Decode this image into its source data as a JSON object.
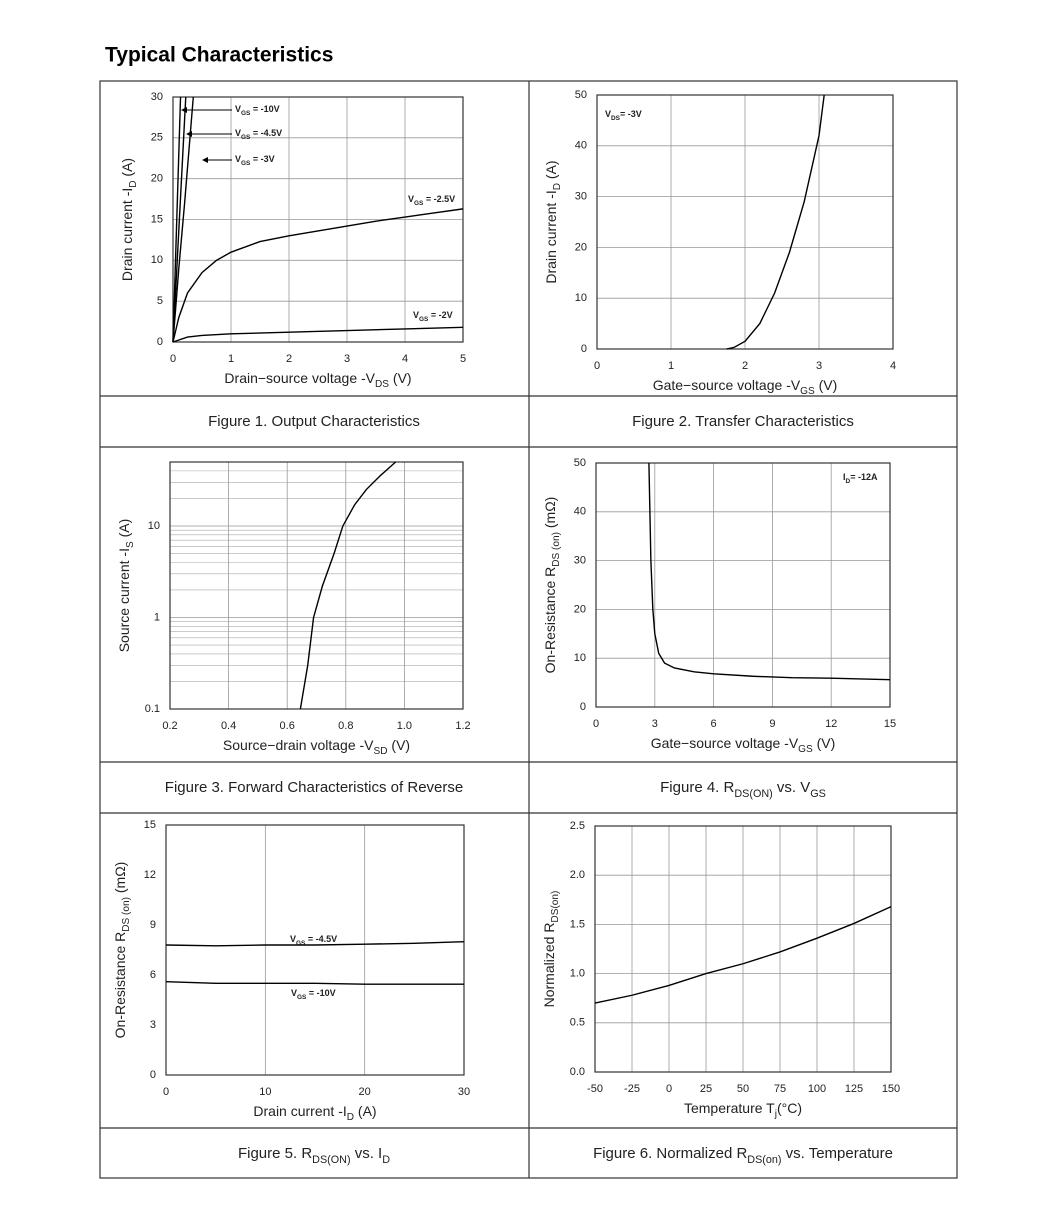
{
  "title": "Typical Characteristics",
  "chart_data": [
    {
      "type": "line",
      "title": [
        "Figure 1. Output Characteristics"
      ],
      "color": "#000000",
      "x_label": [
        "Drain−source voltage -V",
        "DS",
        " (V)"
      ],
      "y_label": [
        "Drain current -I",
        "D",
        " (A)"
      ],
      "xlim": [
        0,
        5
      ],
      "xticks": [
        0,
        1,
        2,
        3,
        4,
        5
      ],
      "ylim": [
        0,
        30
      ],
      "yticks": [
        0,
        5,
        10,
        15,
        20,
        25,
        30
      ],
      "grid": "both",
      "series": [
        {
          "name": [
            "V",
            "GS",
            " = -10V"
          ],
          "x": [
            0,
            0.13
          ],
          "values": [
            0,
            30
          ]
        },
        {
          "name": [
            "V",
            "GS",
            " = -4.5V"
          ],
          "x": [
            0,
            0.22
          ],
          "values": [
            0,
            30
          ]
        },
        {
          "name": [
            "V",
            "GS",
            " = -3V"
          ],
          "x": [
            0,
            0.1,
            0.2,
            0.35
          ],
          "values": [
            0,
            9,
            17,
            30
          ]
        },
        {
          "name": [
            "V",
            "GS",
            " = -2.5V"
          ],
          "x": [
            0,
            0.1,
            0.25,
            0.5,
            0.75,
            1,
            1.5,
            2,
            2.5,
            3,
            3.5,
            4,
            4.5,
            5
          ],
          "values": [
            0,
            3,
            6,
            8.5,
            10,
            11,
            12.3,
            13,
            13.6,
            14.2,
            14.8,
            15.3,
            15.8,
            16.3
          ]
        },
        {
          "name": [
            "V",
            "GS",
            " = -2V"
          ],
          "x": [
            0,
            0.25,
            0.5,
            1,
            2,
            3,
            4,
            5
          ],
          "values": [
            0,
            0.6,
            0.8,
            1,
            1.2,
            1.4,
            1.6,
            1.8
          ]
        }
      ]
    },
    {
      "type": "line",
      "title": [
        "Figure 2. Transfer Characteristics"
      ],
      "color": "#000000",
      "x_label": [
        "Gate−source voltage -V",
        "GS",
        " (V)"
      ],
      "y_label": [
        "Drain current -I",
        "D",
        " (A)"
      ],
      "xlim": [
        0,
        4
      ],
      "xticks": [
        0,
        1,
        2,
        3,
        4
      ],
      "ylim": [
        0,
        50
      ],
      "yticks": [
        0,
        10,
        20,
        30,
        40,
        50
      ],
      "grid": "both",
      "series": [
        {
          "name": [
            "V",
            "DS",
            "= -3V"
          ],
          "x": [
            1.75,
            1.85,
            2,
            2.2,
            2.4,
            2.6,
            2.8,
            3,
            3.07
          ],
          "values": [
            0,
            0.3,
            1.5,
            5,
            11,
            19,
            29,
            42,
            50
          ]
        }
      ]
    },
    {
      "type": "line",
      "title": [
        "Figure 3. Forward Characteristics of Reverse"
      ],
      "color": "#000000",
      "x_label": [
        "Source−drain voltage -V",
        "SD",
        " (V)"
      ],
      "y_label": [
        "Source current -I",
        "S",
        " (A)"
      ],
      "xlim": [
        0.2,
        1.2
      ],
      "xticks": [
        0.2,
        0.4,
        0.6,
        0.8,
        {
          "value": 1,
          "label": "1.0"
        },
        1.2
      ],
      "ylim": [
        0.1,
        50
      ],
      "log_y": true,
      "yticks": [
        0.1,
        1,
        10
      ],
      "y_minor": [
        0.2,
        0.3,
        0.4,
        0.5,
        0.6,
        0.7,
        0.8,
        0.9,
        2,
        3,
        4,
        5,
        6,
        7,
        8,
        9,
        20,
        30,
        40,
        50
      ],
      "grid": "both",
      "series": [
        {
          "name": null,
          "x": [
            0.645,
            0.67,
            0.69,
            0.72,
            0.76,
            0.79,
            0.83,
            0.87,
            0.92,
            0.97
          ],
          "values": [
            0.1,
            0.3,
            1,
            2.2,
            5,
            10,
            17,
            25,
            36,
            50
          ]
        }
      ]
    },
    {
      "type": "line",
      "title": [
        "Figure 4. R",
        "DS(ON)",
        "  vs. V",
        "GS"
      ],
      "color": "#000000",
      "x_label": [
        "Gate−source voltage -V",
        "GS",
        " (V)"
      ],
      "y_label": [
        "On-Resistance  R",
        "DS (on)",
        " (mΩ)"
      ],
      "xlim": [
        0,
        15
      ],
      "xticks": [
        0,
        3,
        6,
        9,
        12,
        15
      ],
      "ylim": [
        0,
        50
      ],
      "yticks": [
        0,
        10,
        20,
        30,
        40,
        50
      ],
      "grid": "both",
      "series": [
        {
          "name": [
            "I",
            "D",
            "= -12A"
          ],
          "x": [
            2.7,
            2.8,
            2.9,
            3,
            3.2,
            3.5,
            4,
            5,
            6,
            8,
            10,
            12,
            15
          ],
          "values": [
            50,
            30,
            20,
            15,
            11,
            9,
            8,
            7.2,
            6.8,
            6.3,
            6,
            5.9,
            5.6
          ]
        }
      ]
    },
    {
      "type": "line",
      "title": [
        "Figure 5. R",
        "DS(ON)",
        " vs. I",
        "D"
      ],
      "color": "#000000",
      "x_label": [
        "Drain current -I",
        "D",
        " (A)"
      ],
      "y_label": [
        "On-Resistance  R",
        "DS (on)",
        " (mΩ)"
      ],
      "xlim": [
        0,
        30
      ],
      "xticks": [
        0,
        10,
        20,
        30
      ],
      "ylim": [
        0,
        15
      ],
      "yticks": [
        0,
        3,
        6,
        9,
        12,
        15
      ],
      "grid": "x",
      "series": [
        {
          "name": [
            "V",
            "GS",
            " = -4.5V"
          ],
          "x": [
            0,
            5,
            10,
            15,
            20,
            25,
            30
          ],
          "values": [
            7.8,
            7.75,
            7.8,
            7.8,
            7.85,
            7.9,
            8.0
          ]
        },
        {
          "name": [
            "V",
            "GS",
            " = -10V"
          ],
          "x": [
            0,
            5,
            10,
            15,
            20,
            25,
            30
          ],
          "values": [
            5.6,
            5.5,
            5.5,
            5.5,
            5.45,
            5.45,
            5.45
          ]
        }
      ]
    },
    {
      "type": "line",
      "title": [
        "Figure 6. Normalized R",
        "DS(on)",
        " vs. Temperature"
      ],
      "color": "#000000",
      "x_label": [
        "Temperature T",
        "j",
        "(°C)"
      ],
      "y_label": [
        "Normalized R",
        "DS(on)"
      ],
      "xlim": [
        -50,
        150
      ],
      "xticks": [
        -50,
        -25,
        0,
        25,
        50,
        75,
        100,
        125,
        150
      ],
      "ylim": [
        0,
        2.5
      ],
      "yticks": [
        {
          "value": 0,
          "label": "0.0"
        },
        0.5,
        {
          "value": 1,
          "label": "1.0"
        },
        1.5,
        {
          "value": 2,
          "label": "2.0"
        },
        2.5
      ],
      "grid": "both",
      "series": [
        {
          "name": null,
          "x": [
            -50,
            -25,
            0,
            25,
            50,
            75,
            100,
            125,
            150
          ],
          "values": [
            0.7,
            0.78,
            0.88,
            1.0,
            1.1,
            1.22,
            1.36,
            1.51,
            1.68
          ]
        }
      ]
    }
  ]
}
